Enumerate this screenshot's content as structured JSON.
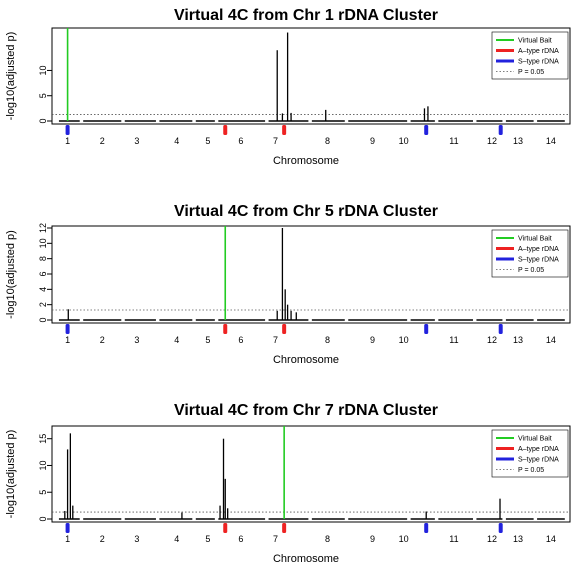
{
  "chart_data": [
    {
      "type": "line",
      "title": "Virtual 4C from Chr 1 rDNA Cluster",
      "xlabel": "Chromosome",
      "ylabel": "-log10(adjusted p)",
      "ylim": [
        0,
        18
      ],
      "yticks": [
        0,
        5,
        10
      ],
      "chromosome_labels": [
        "1",
        "2",
        "3",
        "4",
        "5",
        "6",
        "7",
        "8",
        "9",
        "10",
        "11",
        "12",
        "13",
        "14"
      ],
      "threshold": 1.3,
      "bait_position": 1.0,
      "peaks": [
        {
          "x": 7.05,
          "y": 14.0
        },
        {
          "x": 7.2,
          "y": 1.5
        },
        {
          "x": 7.35,
          "y": 17.5
        },
        {
          "x": 7.45,
          "y": 1.6
        },
        {
          "x": 8.45,
          "y": 2.2
        },
        {
          "x": 11.3,
          "y": 2.5
        },
        {
          "x": 11.4,
          "y": 2.9
        }
      ],
      "legend": {
        "position": "top-right",
        "entries": [
          "Virtual Bait",
          "A–type rDNA",
          "S–type rDNA",
          "P = 0.05"
        ]
      }
    },
    {
      "type": "line",
      "title": "Virtual 4C from Chr 5 rDNA Cluster",
      "xlabel": "Chromosome",
      "ylabel": "-log10(adjusted p)",
      "ylim": [
        0,
        12
      ],
      "yticks": [
        0,
        2,
        4,
        6,
        8,
        10,
        12
      ],
      "chromosome_labels": [
        "1",
        "2",
        "3",
        "4",
        "5",
        "6",
        "7",
        "8",
        "9",
        "10",
        "11",
        "12",
        "13",
        "14"
      ],
      "threshold": 1.3,
      "bait_position": 5.55,
      "peaks": [
        {
          "x": 1.02,
          "y": 1.4
        },
        {
          "x": 7.05,
          "y": 1.2
        },
        {
          "x": 7.2,
          "y": 12.0
        },
        {
          "x": 7.28,
          "y": 4.0
        },
        {
          "x": 7.35,
          "y": 2.0
        },
        {
          "x": 7.45,
          "y": 1.2
        },
        {
          "x": 7.6,
          "y": 1.0
        }
      ],
      "legend": {
        "position": "top-right",
        "entries": [
          "Virtual Bait",
          "A–type rDNA",
          "S–type rDNA",
          "P = 0.05"
        ]
      }
    },
    {
      "type": "line",
      "title": "Virtual 4C from Chr 7 rDNA Cluster",
      "xlabel": "Chromosome",
      "ylabel": "-log10(adjusted p)",
      "ylim": [
        0,
        17
      ],
      "yticks": [
        0,
        5,
        10,
        15
      ],
      "chromosome_labels": [
        "1",
        "2",
        "3",
        "4",
        "5",
        "6",
        "7",
        "8",
        "9",
        "10",
        "11",
        "12",
        "13",
        "14"
      ],
      "threshold": 1.3,
      "bait_position": 7.25,
      "peaks": [
        {
          "x": 0.92,
          "y": 1.5
        },
        {
          "x": 1.0,
          "y": 13.0
        },
        {
          "x": 1.08,
          "y": 16.0
        },
        {
          "x": 1.15,
          "y": 2.5
        },
        {
          "x": 4.3,
          "y": 1.2
        },
        {
          "x": 5.4,
          "y": 2.5
        },
        {
          "x": 5.5,
          "y": 15.0
        },
        {
          "x": 5.55,
          "y": 7.5
        },
        {
          "x": 5.62,
          "y": 2.0
        },
        {
          "x": 11.35,
          "y": 1.4
        },
        {
          "x": 13.48,
          "y": 3.8
        }
      ],
      "legend": {
        "position": "top-right",
        "entries": [
          "Virtual Bait",
          "A–type rDNA",
          "S–type rDNA",
          "P = 0.05"
        ]
      }
    }
  ],
  "colors": {
    "bait": "#22cc22",
    "a_type": "#ee2222",
    "s_type": "#2222dd",
    "threshold": "#555555",
    "signal": "#000000"
  },
  "chromosome_segments": [
    {
      "start": 0.75,
      "end": 1.35
    },
    {
      "start": 1.45,
      "end": 2.55
    },
    {
      "start": 2.65,
      "end": 3.55
    },
    {
      "start": 3.65,
      "end": 4.6
    },
    {
      "start": 4.7,
      "end": 5.25
    },
    {
      "start": 5.35,
      "end": 6.7
    },
    {
      "start": 6.8,
      "end": 7.95
    },
    {
      "start": 8.05,
      "end": 9.0
    },
    {
      "start": 9.1,
      "end": 10.8
    },
    {
      "start": 10.9,
      "end": 11.6
    },
    {
      "start": 11.7,
      "end": 12.7
    },
    {
      "start": 12.8,
      "end": 13.55
    },
    {
      "start": 13.65,
      "end": 14.45
    },
    {
      "start": 14.55,
      "end": 15.35
    }
  ],
  "chromosome_label_positions": [
    1.0,
    2.0,
    3.0,
    4.15,
    5.05,
    6.0,
    7.0,
    8.5,
    9.8,
    10.7,
    12.15,
    13.25,
    14.0,
    14.95
  ],
  "rdna_markers": {
    "a_type": [
      5.55,
      7.25
    ],
    "s_type": [
      1.0,
      11.35,
      13.5
    ]
  },
  "x_range": [
    0.55,
    15.5
  ]
}
